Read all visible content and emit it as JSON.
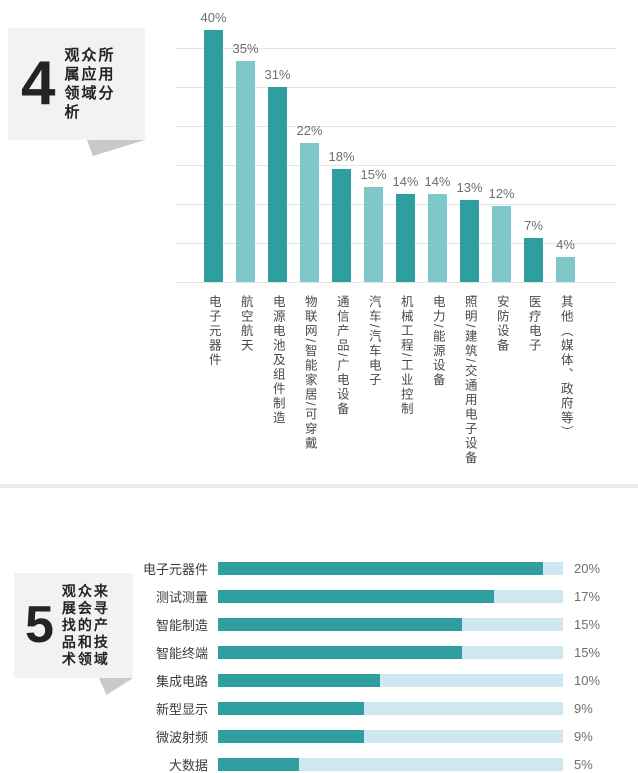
{
  "palette": {
    "bar_dark_teal": "#2E9EA0",
    "bar_light_teal": "#7FC8CA",
    "track_pale_blue": "#CFE7F0",
    "grid_line": "#E4E4E4",
    "badge_background": "#F2F2F2",
    "badge_tail_gray": "#C9C9C9",
    "badge_text": "#232323",
    "value_text_gray": "#6E6E6E",
    "category_text_gray": "#4A4A4A",
    "divider_gray": "#EBEBEB"
  },
  "sections": [
    {
      "number": "4",
      "title": "观众所属应用领域分析",
      "title_lines": [
        "观众所",
        "属应用",
        "领域分",
        "析"
      ]
    },
    {
      "number": "5",
      "title": "观众来展会寻找的产品和技术领域",
      "title_lines": [
        "观众来",
        "展会寻",
        "找的产",
        "品和技",
        "术领域"
      ]
    }
  ],
  "chart_data": [
    {
      "type": "bar",
      "orientation": "vertical",
      "title": "观众所属应用领域分析",
      "categories": [
        "电子元器件",
        "航空航天",
        "电源电池及组件制造",
        "物联网/智能家居/可穿戴",
        "通信产品/广电设备",
        "汽车/汽车电子",
        "机械工程/工业控制",
        "电力/能源设备",
        "照明/建筑/交通用电子设备",
        "安防设备",
        "医疗电子",
        "其他（媒体、政府等）"
      ],
      "values": [
        40,
        35,
        31,
        22,
        18,
        15,
        14,
        14,
        13,
        12,
        7,
        4
      ],
      "value_labels": [
        "40%",
        "35%",
        "31%",
        "22%",
        "18%",
        "15%",
        "14%",
        "14%",
        "13%",
        "12%",
        "7%",
        "4%"
      ],
      "ylim": [
        0,
        42
      ],
      "grid": "horizontal",
      "legend": "none",
      "bar_color_pattern": [
        "#2E9EA0",
        "#7FC8CA"
      ]
    },
    {
      "type": "bar",
      "orientation": "horizontal",
      "title": "观众来展会寻找的产品和技术领域",
      "categories": [
        "电子元器件",
        "测试测量",
        "智能制造",
        "智能终端",
        "集成电路",
        "新型显示",
        "微波射频",
        "大数据"
      ],
      "values": [
        20,
        17,
        15,
        15,
        10,
        9,
        9,
        5
      ],
      "value_labels": [
        "20%",
        "17%",
        "15%",
        "15%",
        "10%",
        "9%",
        "9%",
        "5%"
      ],
      "xlim": [
        0,
        21.25
      ],
      "grid": "off",
      "legend": "none",
      "bar_color": "#2E9EA0",
      "track_color": "#CFE7F0"
    }
  ]
}
